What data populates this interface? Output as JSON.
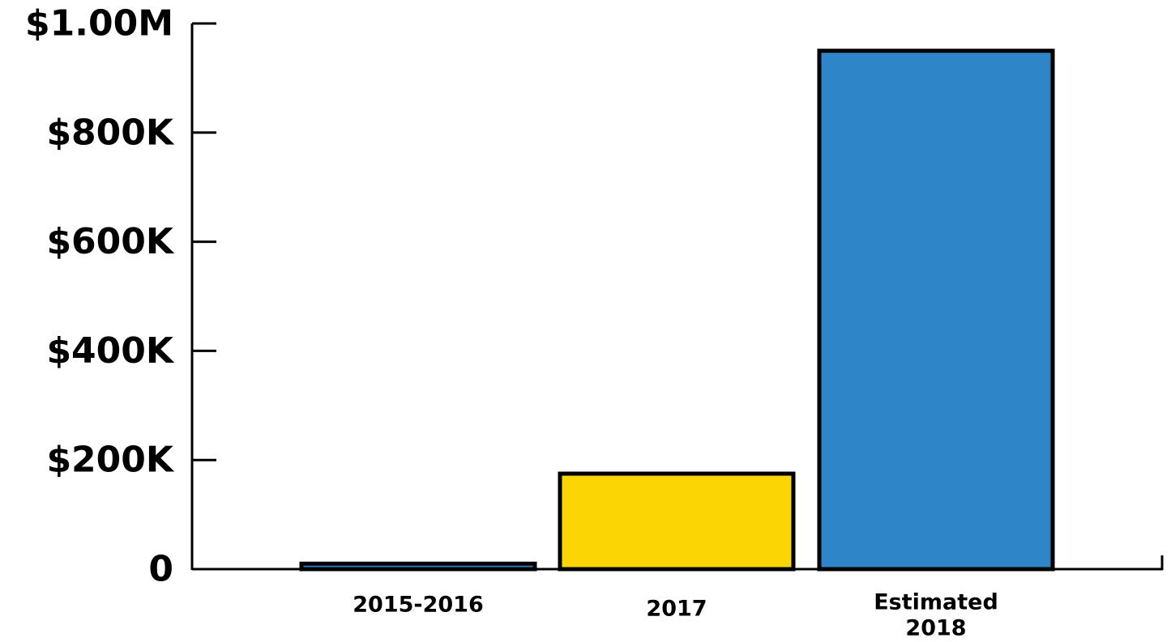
{
  "chart_data": {
    "type": "bar",
    "categories": [
      [
        "2015-2016"
      ],
      [
        "2017"
      ],
      [
        "Estimated",
        "2018"
      ]
    ],
    "values": [
      10000,
      175000,
      950000
    ],
    "bar_colors": [
      "#2e86c8",
      "#fbd604",
      "#2e86c8"
    ],
    "outline_color": "#000000",
    "ylim": [
      0,
      1000000
    ],
    "y_ticks": [
      0,
      200000,
      400000,
      600000,
      800000,
      1000000
    ],
    "y_tick_labels": [
      "0",
      "$200K",
      "$400K",
      "$600K",
      "$800K",
      "$1.00M"
    ],
    "title": "",
    "xlabel": "",
    "ylabel": "",
    "grid": false,
    "legend": "none"
  }
}
